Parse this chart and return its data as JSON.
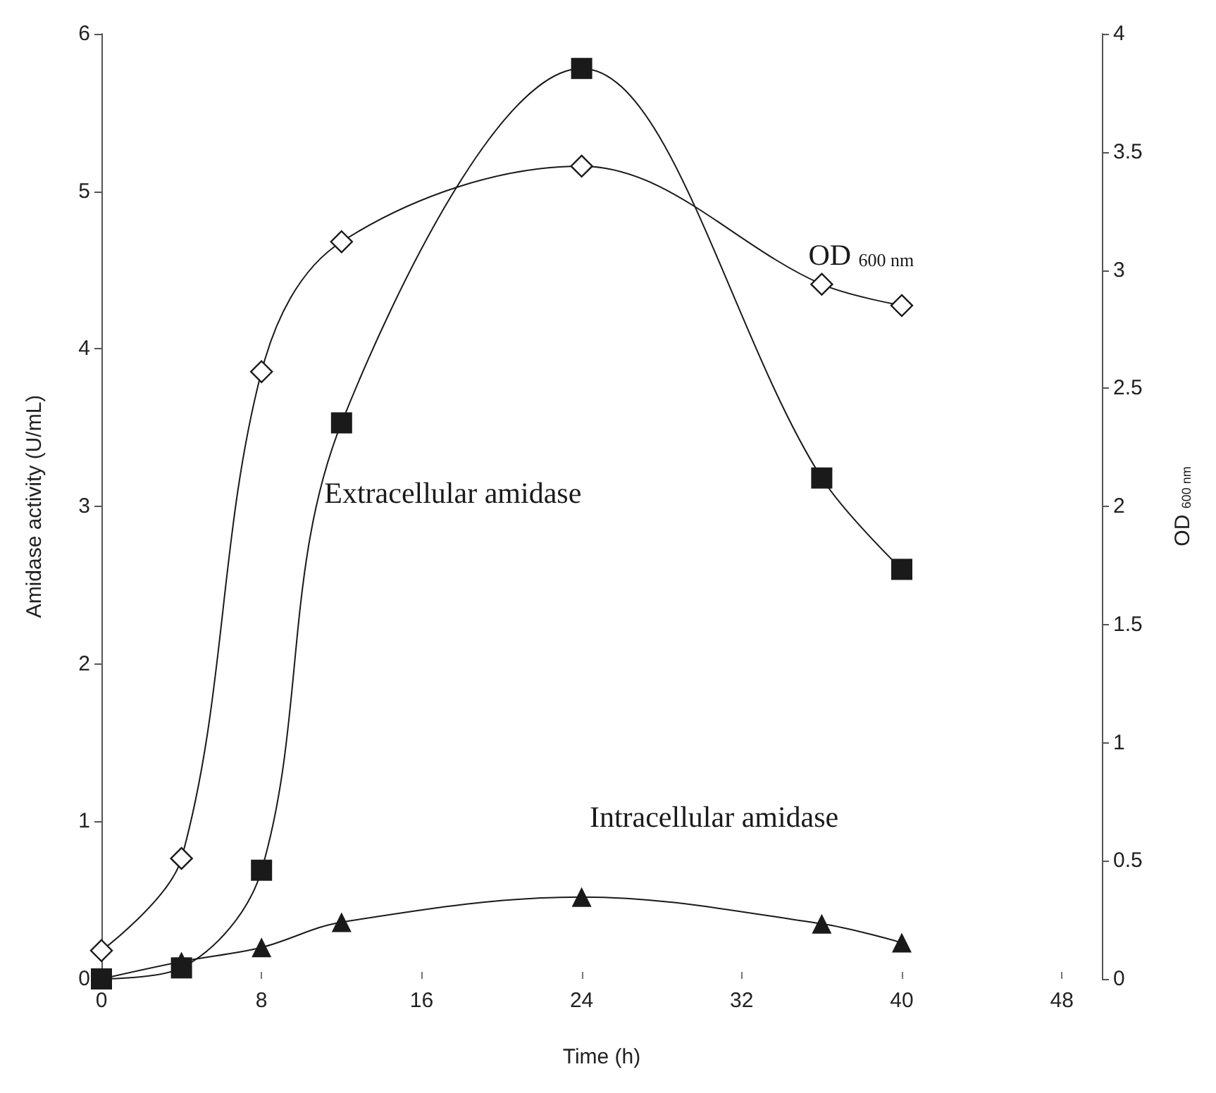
{
  "chart_data": {
    "type": "line",
    "xlabel": "Time (h)",
    "ylabel": "Amidase activity (U/mL)",
    "y2label": "OD $_{600 nm}$",
    "xlim": [
      0,
      50
    ],
    "xticks": [
      0,
      8,
      16,
      24,
      32,
      40,
      48
    ],
    "ylim": [
      0,
      6
    ],
    "yticks": [
      0,
      1,
      2,
      3,
      4,
      5,
      6
    ],
    "y2lim": [
      0,
      4
    ],
    "y2ticks": [
      0,
      0.5,
      1,
      1.5,
      2,
      2.5,
      3,
      3.5,
      4
    ],
    "x": [
      0,
      4,
      8,
      12,
      24,
      36,
      40
    ],
    "series": [
      {
        "name": "Extracellular amidase",
        "color": "#1a1a1a",
        "marker": "square",
        "values": [
          0,
          0.07,
          0.69,
          3.53,
          5.78,
          3.18,
          2.6
        ]
      },
      {
        "name": "OD $_{600 nm}$",
        "color": "#1a1a1a",
        "marker": "diamond",
        "axis": "y2",
        "values": [
          0.12,
          0.51,
          2.57,
          3.12,
          3.44,
          2.94,
          2.85
        ]
      },
      {
        "name": "Intracellular amidase",
        "color": "#1a1a1a",
        "marker": "triangle",
        "values": [
          0,
          0.11,
          0.2,
          0.36,
          0.52,
          0.35,
          0.23
        ]
      }
    ],
    "grid": false,
    "legend": false,
    "line_style": "solid"
  }
}
